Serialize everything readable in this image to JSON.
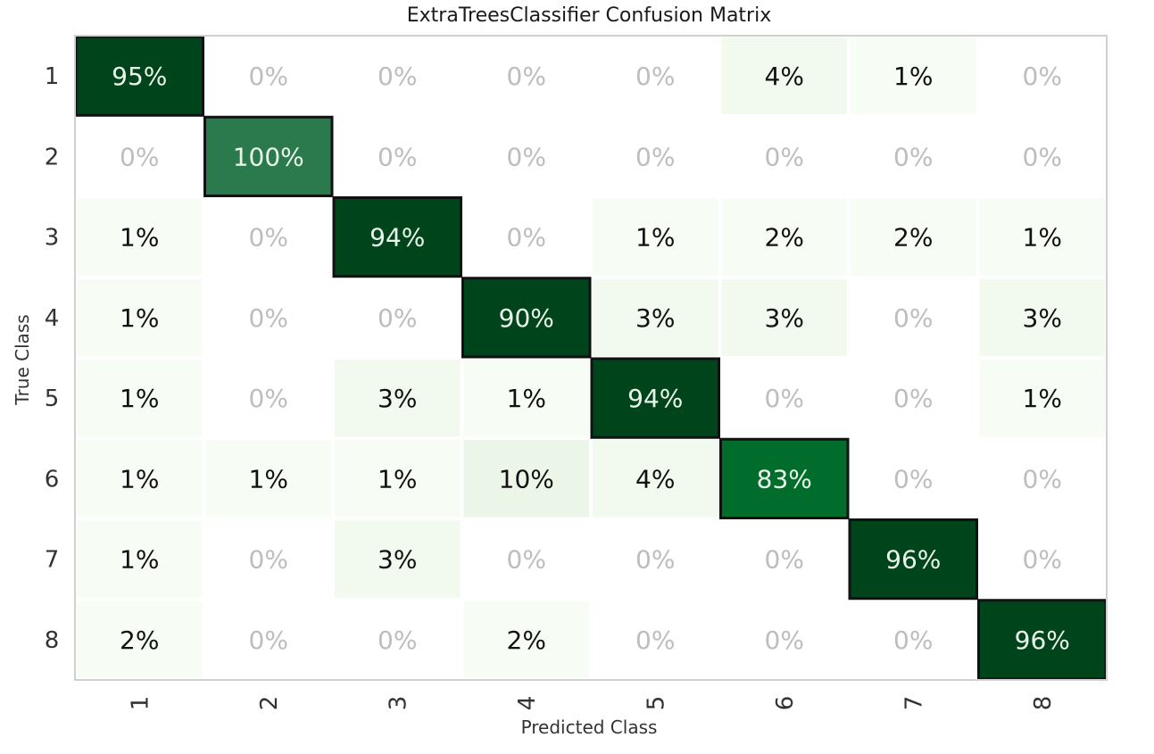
{
  "chart_data": {
    "type": "heatmap",
    "title": "ExtraTreesClassifier Confusion Matrix",
    "xlabel": "Predicted Class",
    "ylabel": "True Class",
    "row_labels": [
      "1",
      "2",
      "3",
      "4",
      "5",
      "6",
      "7",
      "8"
    ],
    "col_labels": [
      "1",
      "2",
      "3",
      "4",
      "5",
      "6",
      "7",
      "8"
    ],
    "values": [
      [
        95,
        0,
        0,
        0,
        0,
        4,
        1,
        0
      ],
      [
        0,
        100,
        0,
        0,
        0,
        0,
        0,
        0
      ],
      [
        1,
        0,
        94,
        0,
        1,
        2,
        2,
        1
      ],
      [
        1,
        0,
        0,
        90,
        3,
        3,
        0,
        3
      ],
      [
        1,
        0,
        3,
        1,
        94,
        0,
        0,
        1
      ],
      [
        1,
        1,
        1,
        10,
        4,
        83,
        0,
        0
      ],
      [
        1,
        0,
        3,
        0,
        0,
        0,
        96,
        0
      ],
      [
        2,
        0,
        0,
        2,
        0,
        0,
        0,
        96
      ]
    ],
    "value_suffix": "%",
    "diagonal_colors": [
      "#00441b",
      "#2a7a4e",
      "#00441b",
      "#00441b",
      "#00441b",
      "#006d2c",
      "#00441b",
      "#00441b"
    ],
    "colors": {
      "zero_cell": "#ffffff",
      "zero_text": "#bdbdbd",
      "light_text": "#111111",
      "dark_text": "#eaf5ea",
      "low_shades": [
        "#f7fcf5",
        "#f2f9ef",
        "#ecf6e8"
      ],
      "diagonal_border": "#111111",
      "frame": "#d0d0d0"
    }
  }
}
